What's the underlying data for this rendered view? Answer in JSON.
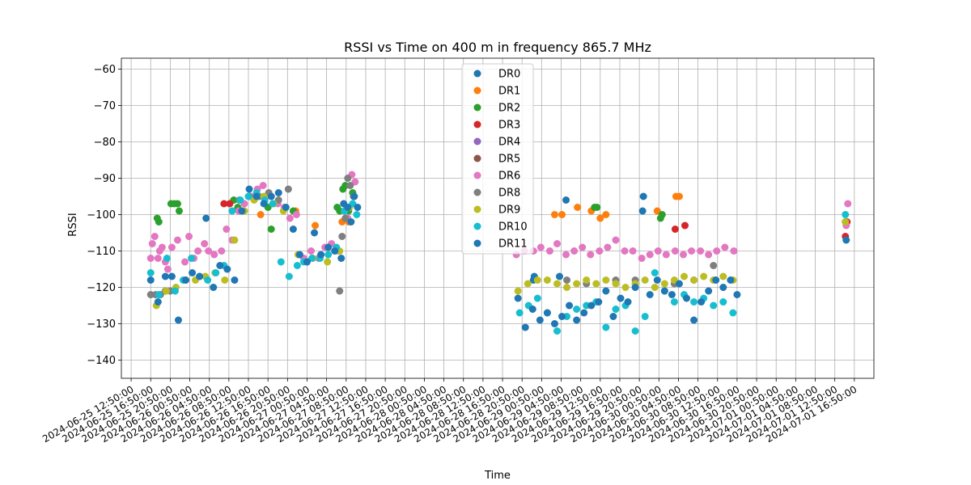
{
  "chart_data": {
    "type": "scatter",
    "title": "RSSI vs Time on 400 m in frequency 865.7 MHz",
    "xlabel": "Time",
    "ylabel": "RSSI",
    "xlim": [
      "2024-06-25 10:50:00",
      "2024-07-01 20:50:00"
    ],
    "ylim": [
      -145,
      -57
    ],
    "grid": true,
    "legend_position": "upper center",
    "x_ticks": [
      "2024-06-25 12:50:00",
      "2024-06-25 16:50:00",
      "2024-06-25 20:50:00",
      "2024-06-26 00:50:00",
      "2024-06-26 04:50:00",
      "2024-06-26 08:50:00",
      "2024-06-26 12:50:00",
      "2024-06-26 16:50:00",
      "2024-06-26 20:50:00",
      "2024-06-27 00:50:00",
      "2024-06-27 04:50:00",
      "2024-06-27 08:50:00",
      "2024-06-27 12:50:00",
      "2024-06-27 16:50:00",
      "2024-06-27 20:50:00",
      "2024-06-28 00:50:00",
      "2024-06-28 04:50:00",
      "2024-06-28 08:50:00",
      "2024-06-28 12:50:00",
      "2024-06-28 16:50:00",
      "2024-06-28 20:50:00",
      "2024-06-29 00:50:00",
      "2024-06-29 04:50:00",
      "2024-06-29 08:50:00",
      "2024-06-29 12:50:00",
      "2024-06-29 16:50:00",
      "2024-06-29 20:50:00",
      "2024-06-30 00:50:00",
      "2024-06-30 04:50:00",
      "2024-06-30 08:50:00",
      "2024-06-30 12:50:00",
      "2024-06-30 16:50:00",
      "2024-06-30 20:50:00",
      "2024-07-01 00:50:00",
      "2024-07-01 04:50:00",
      "2024-07-01 08:50:00",
      "2024-07-01 12:50:00",
      "2024-07-01 16:50:00"
    ],
    "y_ticks": [
      -140,
      -130,
      -120,
      -110,
      -100,
      -90,
      -80,
      -70,
      -60
    ],
    "series": [
      {
        "name": "DR0",
        "color": "#1f77b4",
        "x": [
          "2024-06-28 23:10:00",
          "2024-06-28 23:20:00",
          "2024-06-29 04:30:00",
          "2024-06-29 05:50:00",
          "2024-06-29 21:40:00"
        ],
        "y": [
          -118,
          -117,
          -117,
          -96,
          -95
        ]
      },
      {
        "name": "DR1",
        "color": "#ff7f0e",
        "x": [
          "2024-06-26 15:20:00",
          "2024-06-26 22:30:00",
          "2024-06-27 02:30:00",
          "2024-06-27 08:00:00",
          "2024-06-27 09:20:00",
          "2024-06-29 03:30:00",
          "2024-06-29 05:00:00",
          "2024-06-29 08:10:00",
          "2024-06-29 11:00:00",
          "2024-06-29 12:50:00",
          "2024-06-29 14:00:00",
          "2024-06-30 00:30:00",
          "2024-06-30 04:20:00",
          "2024-06-30 05:00:00",
          "2024-07-01 15:10:00"
        ],
        "y": [
          -100,
          -99,
          -103,
          -102,
          -102,
          -100,
          -100,
          -98,
          -99,
          -101,
          -100,
          -99,
          -95,
          -95,
          -102
        ]
      },
      {
        "name": "DR2",
        "color": "#2ca02c",
        "x": [
          "2024-06-25 18:10:00",
          "2024-06-25 18:30:00",
          "2024-06-25 21:00:00",
          "2024-06-25 21:40:00",
          "2024-06-25 22:20:00",
          "2024-06-25 22:40:00",
          "2024-06-26 09:50:00",
          "2024-06-26 10:40:00",
          "2024-06-26 16:50:00",
          "2024-06-26 17:30:00",
          "2024-06-26 22:00:00",
          "2024-06-27 07:00:00",
          "2024-06-27 07:30:00",
          "2024-06-27 08:10:00",
          "2024-06-27 08:40:00",
          "2024-06-27 09:20:00",
          "2024-06-27 10:10:00",
          "2024-06-29 11:40:00",
          "2024-06-29 12:10:00",
          "2024-06-30 01:10:00",
          "2024-06-30 01:30:00",
          "2024-07-01 15:00:00"
        ],
        "y": [
          -101,
          -102,
          -97,
          -97,
          -97,
          -99,
          -96,
          -98,
          -98,
          -104,
          -99,
          -98,
          -99,
          -93,
          -92,
          -99,
          -94,
          -98,
          -98,
          -101,
          -100,
          -102
        ]
      },
      {
        "name": "DR3",
        "color": "#d62728",
        "x": [
          "2024-06-26 07:50:00",
          "2024-06-26 09:00:00",
          "2024-06-30 04:10:00",
          "2024-06-30 06:10:00",
          "2024-07-01 15:00:00",
          "2024-07-01 15:20:00"
        ],
        "y": [
          -97,
          -97,
          -104,
          -103,
          -106,
          -102
        ]
      },
      {
        "name": "DR4",
        "color": "#9467bd",
        "x": [],
        "y": []
      },
      {
        "name": "DR5",
        "color": "#8c564b",
        "x": [],
        "y": []
      },
      {
        "name": "DR6",
        "color": "#e377c2",
        "x": [
          "2024-06-25 16:50:00",
          "2024-06-25 17:10:00",
          "2024-06-25 17:40:00",
          "2024-06-25 18:20:00",
          "2024-06-25 18:40:00",
          "2024-06-25 19:10:00",
          "2024-06-25 19:50:00",
          "2024-06-25 20:20:00",
          "2024-06-25 21:10:00",
          "2024-06-25 22:20:00",
          "2024-06-25 23:50:00",
          "2024-06-26 00:40:00",
          "2024-06-26 01:40:00",
          "2024-06-26 02:30:00",
          "2024-06-26 03:50:00",
          "2024-06-26 04:40:00",
          "2024-06-26 05:50:00",
          "2024-06-26 07:20:00",
          "2024-06-26 08:20:00",
          "2024-06-26 09:30:00",
          "2024-06-26 10:50:00",
          "2024-06-26 12:00:00",
          "2024-06-26 13:20:00",
          "2024-06-26 14:40:00",
          "2024-06-26 15:50:00",
          "2024-06-26 17:30:00",
          "2024-06-26 18:50:00",
          "2024-06-26 20:10:00",
          "2024-06-26 21:20:00",
          "2024-06-26 22:40:00",
          "2024-06-27 00:10:00",
          "2024-06-27 01:40:00",
          "2024-06-27 03:10:00",
          "2024-06-27 04:30:00",
          "2024-06-27 05:50:00",
          "2024-06-27 07:10:00",
          "2024-06-27 08:30:00",
          "2024-06-27 09:10:00",
          "2024-06-27 10:00:00",
          "2024-06-27 10:40:00",
          "2024-06-28 19:40:00",
          "2024-06-28 21:20:00",
          "2024-06-28 23:10:00",
          "2024-06-29 00:40:00",
          "2024-06-29 02:30:00",
          "2024-06-29 04:00:00",
          "2024-06-29 05:50:00",
          "2024-06-29 07:30:00",
          "2024-06-29 09:10:00",
          "2024-06-29 10:50:00",
          "2024-06-29 12:40:00",
          "2024-06-29 14:20:00",
          "2024-06-29 16:00:00",
          "2024-06-29 17:50:00",
          "2024-06-29 19:30:00",
          "2024-06-29 21:20:00",
          "2024-06-29 23:00:00",
          "2024-06-30 00:40:00",
          "2024-06-30 02:20:00",
          "2024-06-30 04:10:00",
          "2024-06-30 05:50:00",
          "2024-06-30 07:30:00",
          "2024-06-30 09:20:00",
          "2024-06-30 11:00:00",
          "2024-06-30 12:40:00",
          "2024-06-30 14:20:00",
          "2024-06-30 16:10:00",
          "2024-07-01 15:10:00",
          "2024-07-01 15:30:00"
        ],
        "y": [
          -112,
          -108,
          -106,
          -112,
          -110,
          -109,
          -113,
          -115,
          -109,
          -107,
          -113,
          -106,
          -112,
          -110,
          -108,
          -110,
          -111,
          -110,
          -104,
          -107,
          -99,
          -97,
          -95,
          -93,
          -92,
          -95,
          -97,
          -98,
          -101,
          -100,
          -112,
          -110,
          -112,
          -109,
          -108,
          -110,
          -99,
          -101,
          -89,
          -91,
          -111,
          -110,
          -110,
          -109,
          -110,
          -108,
          -111,
          -110,
          -109,
          -111,
          -110,
          -109,
          -107,
          -110,
          -110,
          -112,
          -111,
          -110,
          -111,
          -110,
          -111,
          -110,
          -110,
          -111,
          -110,
          -109,
          -110,
          -103,
          -97
        ]
      },
      {
        "name": "DR8",
        "color": "#7f7f7f",
        "x": [
          "2024-06-25 16:50:00",
          "2024-06-25 17:50:00",
          "2024-06-25 18:50:00",
          "2024-06-25 19:50:00",
          "2024-06-25 20:50:00",
          "2024-06-26 11:00:00",
          "2024-06-26 13:00:00",
          "2024-06-26 15:00:00",
          "2024-06-26 17:00:00",
          "2024-06-26 19:00:00",
          "2024-06-26 21:00:00",
          "2024-06-27 07:30:00",
          "2024-06-27 08:00:00",
          "2024-06-27 08:40:00",
          "2024-06-27 09:10:00",
          "2024-06-27 09:40:00",
          "2024-06-27 10:20:00",
          "2024-06-29 06:00:00",
          "2024-06-29 10:00:00",
          "2024-06-29 16:00:00",
          "2024-06-29 20:00:00",
          "2024-06-30 04:00:00",
          "2024-06-30 08:00:00",
          "2024-06-30 12:00:00"
        ],
        "y": [
          -122,
          -122,
          -122,
          -121,
          -121,
          -96,
          -95,
          -95,
          -94,
          -96,
          -93,
          -121,
          -106,
          -101,
          -90,
          -92,
          -95,
          -118,
          -119,
          -118,
          -118,
          -119,
          -118,
          -114
        ]
      },
      {
        "name": "DR9",
        "color": "#bcbd22",
        "x": [
          "2024-06-25 18:00:00",
          "2024-06-25 20:00:00",
          "2024-06-25 22:00:00",
          "2024-06-26 00:00:00",
          "2024-06-26 02:00:00",
          "2024-06-26 04:00:00",
          "2024-06-26 06:00:00",
          "2024-06-26 08:00:00",
          "2024-06-26 10:00:00",
          "2024-06-26 12:00:00",
          "2024-06-26 14:00:00",
          "2024-06-26 16:00:00",
          "2024-06-26 18:00:00",
          "2024-06-26 20:00:00",
          "2024-06-26 23:00:00",
          "2024-06-27 02:00:00",
          "2024-06-27 05:00:00",
          "2024-06-27 07:30:00",
          "2024-06-27 09:30:00",
          "2024-06-28 20:00:00",
          "2024-06-28 22:00:00",
          "2024-06-29 00:00:00",
          "2024-06-29 02:00:00",
          "2024-06-29 04:00:00",
          "2024-06-29 06:00:00",
          "2024-06-29 08:00:00",
          "2024-06-29 10:00:00",
          "2024-06-29 12:00:00",
          "2024-06-29 14:00:00",
          "2024-06-29 16:00:00",
          "2024-06-29 18:00:00",
          "2024-06-29 20:00:00",
          "2024-06-29 22:00:00",
          "2024-06-30 00:00:00",
          "2024-06-30 02:00:00",
          "2024-06-30 04:00:00",
          "2024-06-30 06:00:00",
          "2024-06-30 08:00:00",
          "2024-06-30 10:00:00",
          "2024-06-30 12:00:00",
          "2024-06-30 14:00:00",
          "2024-06-30 16:00:00",
          "2024-07-01 15:00:00"
        ],
        "y": [
          -125,
          -121,
          -120,
          -118,
          -118,
          -117,
          -116,
          -118,
          -107,
          -99,
          -96,
          -95,
          -97,
          -99,
          -111,
          -112,
          -113,
          -110,
          -98,
          -121,
          -119,
          -118,
          -118,
          -119,
          -120,
          -119,
          -118,
          -119,
          -118,
          -119,
          -120,
          -119,
          -118,
          -120,
          -119,
          -118,
          -117,
          -118,
          -117,
          -118,
          -117,
          -118,
          -102
        ]
      },
      {
        "name": "DR10",
        "color": "#17becf",
        "x": [
          "2024-06-25 16:50:00",
          "2024-06-25 18:30:00",
          "2024-06-25 20:10:00",
          "2024-06-25 21:50:00",
          "2024-06-25 23:30:00",
          "2024-06-26 01:10:00",
          "2024-06-26 02:50:00",
          "2024-06-26 04:30:00",
          "2024-06-26 06:10:00",
          "2024-06-26 07:50:00",
          "2024-06-26 09:30:00",
          "2024-06-26 11:10:00",
          "2024-06-26 12:50:00",
          "2024-06-26 14:30:00",
          "2024-06-26 16:10:00",
          "2024-06-26 17:50:00",
          "2024-06-26 19:30:00",
          "2024-06-26 21:10:00",
          "2024-06-26 22:50:00",
          "2024-06-27 00:10:00",
          "2024-06-27 01:50:00",
          "2024-06-27 03:30:00",
          "2024-06-27 05:10:00",
          "2024-06-27 06:50:00",
          "2024-06-27 08:30:00",
          "2024-06-27 10:10:00",
          "2024-06-27 11:00:00",
          "2024-06-28 20:20:00",
          "2024-06-28 22:10:00",
          "2024-06-29 00:00:00",
          "2024-06-29 02:00:00",
          "2024-06-29 04:00:00",
          "2024-06-29 06:00:00",
          "2024-06-29 08:00:00",
          "2024-06-29 10:00:00",
          "2024-06-29 12:00:00",
          "2024-06-29 14:00:00",
          "2024-06-29 16:00:00",
          "2024-06-29 18:00:00",
          "2024-06-29 20:00:00",
          "2024-06-29 22:00:00",
          "2024-06-30 00:00:00",
          "2024-06-30 02:00:00",
          "2024-06-30 04:00:00",
          "2024-06-30 06:00:00",
          "2024-06-30 08:00:00",
          "2024-06-30 10:00:00",
          "2024-06-30 12:00:00",
          "2024-06-30 14:00:00",
          "2024-06-30 16:00:00",
          "2024-07-01 15:00:00"
        ],
        "y": [
          -116,
          -122,
          -112,
          -121,
          -118,
          -112,
          -117,
          -118,
          -116,
          -114,
          -99,
          -96,
          -95,
          -94,
          -96,
          -97,
          -113,
          -117,
          -114,
          -113,
          -112,
          -112,
          -111,
          -109,
          -99,
          -97,
          -100,
          -127,
          -125,
          -123,
          -127,
          -132,
          -128,
          -126,
          -125,
          -124,
          -131,
          -126,
          -125,
          -132,
          -128,
          -116,
          -121,
          -124,
          -122,
          -124,
          -123,
          -125,
          -124,
          -127,
          -100
        ]
      },
      {
        "name": "DR11",
        "color": "#1f77b4",
        "x": [
          "2024-06-25 16:50:00",
          "2024-06-25 18:20:00",
          "2024-06-25 19:50:00",
          "2024-06-25 21:10:00",
          "2024-06-25 22:30:00",
          "2024-06-26 00:00:00",
          "2024-06-26 01:20:00",
          "2024-06-26 02:50:00",
          "2024-06-26 04:10:00",
          "2024-06-26 05:40:00",
          "2024-06-26 07:00:00",
          "2024-06-26 08:30:00",
          "2024-06-26 10:00:00",
          "2024-06-26 11:30:00",
          "2024-06-26 13:00:00",
          "2024-06-26 14:30:00",
          "2024-06-26 16:00:00",
          "2024-06-26 17:30:00",
          "2024-06-26 19:00:00",
          "2024-06-26 20:30:00",
          "2024-06-26 22:00:00",
          "2024-06-26 23:20:00",
          "2024-06-27 00:50:00",
          "2024-06-27 02:20:00",
          "2024-06-27 03:40:00",
          "2024-06-27 05:10:00",
          "2024-06-27 06:30:00",
          "2024-06-27 07:50:00",
          "2024-06-27 08:20:00",
          "2024-06-27 09:10:00",
          "2024-06-27 09:50:00",
          "2024-06-27 10:30:00",
          "2024-06-27 11:10:00",
          "2024-06-28 20:00:00",
          "2024-06-28 21:30:00",
          "2024-06-28 23:00:00",
          "2024-06-29 00:30:00",
          "2024-06-29 02:00:00",
          "2024-06-29 03:30:00",
          "2024-06-29 05:00:00",
          "2024-06-29 06:30:00",
          "2024-06-29 08:00:00",
          "2024-06-29 09:30:00",
          "2024-06-29 11:00:00",
          "2024-06-29 12:30:00",
          "2024-06-29 14:00:00",
          "2024-06-29 15:30:00",
          "2024-06-29 17:00:00",
          "2024-06-29 18:30:00",
          "2024-06-29 20:00:00",
          "2024-06-29 21:30:00",
          "2024-06-29 23:00:00",
          "2024-06-30 00:30:00",
          "2024-06-30 02:00:00",
          "2024-06-30 03:30:00",
          "2024-06-30 05:00:00",
          "2024-06-30 06:30:00",
          "2024-06-30 08:00:00",
          "2024-06-30 09:30:00",
          "2024-06-30 11:00:00",
          "2024-06-30 12:30:00",
          "2024-06-30 14:00:00",
          "2024-06-30 15:30:00",
          "2024-06-30 16:50:00",
          "2024-07-01 15:10:00"
        ],
        "y": [
          -118,
          -124,
          -117,
          -117,
          -129,
          -118,
          -116,
          -117,
          -101,
          -120,
          -114,
          -115,
          -118,
          -99,
          -93,
          -95,
          -97,
          -95,
          -94,
          -98,
          -104,
          -111,
          -113,
          -105,
          -111,
          -109,
          -110,
          -112,
          -97,
          -98,
          -102,
          -95,
          -98,
          -123,
          -131,
          -126,
          -129,
          -127,
          -130,
          -128,
          -125,
          -129,
          -127,
          -125,
          -124,
          -121,
          -128,
          -123,
          -124,
          -120,
          -99,
          -122,
          -118,
          -121,
          -122,
          -119,
          -123,
          -129,
          -124,
          -121,
          -118,
          -120,
          -118,
          -122,
          -107
        ]
      }
    ]
  }
}
